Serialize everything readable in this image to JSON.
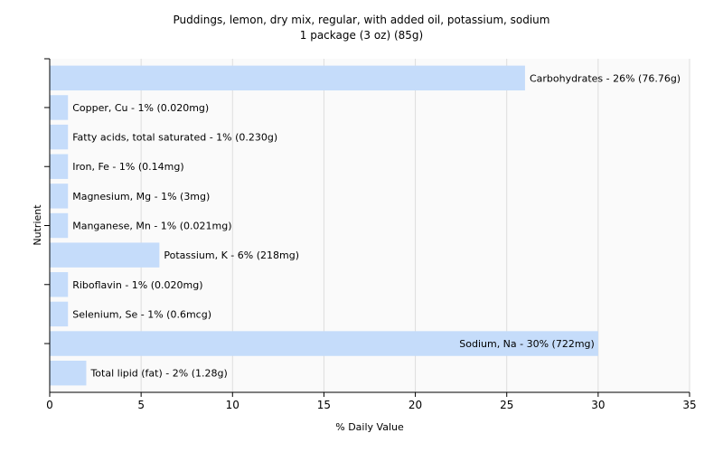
{
  "chart_data": {
    "type": "bar",
    "orientation": "horizontal",
    "title": "Puddings, lemon, dry mix, regular, with added oil, potassium, sodium",
    "subtitle": "1 package (3 oz) (85g)",
    "xlabel": "% Daily Value",
    "ylabel": "Nutrient",
    "xlim": [
      0,
      35
    ],
    "xticks": [
      0,
      5,
      10,
      15,
      20,
      25,
      30,
      35
    ],
    "grid": true,
    "legend": "none",
    "bar_color": "#c5dcfa",
    "categories": [
      "Carbohydrates",
      "Copper, Cu",
      "Fatty acids, total saturated",
      "Iron, Fe",
      "Magnesium, Mg",
      "Manganese, Mn",
      "Potassium, K",
      "Riboflavin",
      "Selenium, Se",
      "Sodium, Na",
      "Total lipid (fat)"
    ],
    "values": [
      26,
      1,
      1,
      1,
      1,
      1,
      6,
      1,
      1,
      30,
      2
    ],
    "labels": [
      "Carbohydrates - 26% (76.76g)",
      "Copper, Cu - 1% (0.020mg)",
      "Fatty acids, total saturated - 1% (0.230g)",
      "Iron, Fe - 1% (0.14mg)",
      "Magnesium, Mg - 1% (3mg)",
      "Manganese, Mn - 1% (0.021mg)",
      "Potassium, K - 6% (218mg)",
      "Riboflavin - 1% (0.020mg)",
      "Selenium, Se - 1% (0.6mcg)",
      "Sodium, Na - 30% (722mg)",
      "Total lipid (fat) - 2% (1.28g)"
    ]
  }
}
